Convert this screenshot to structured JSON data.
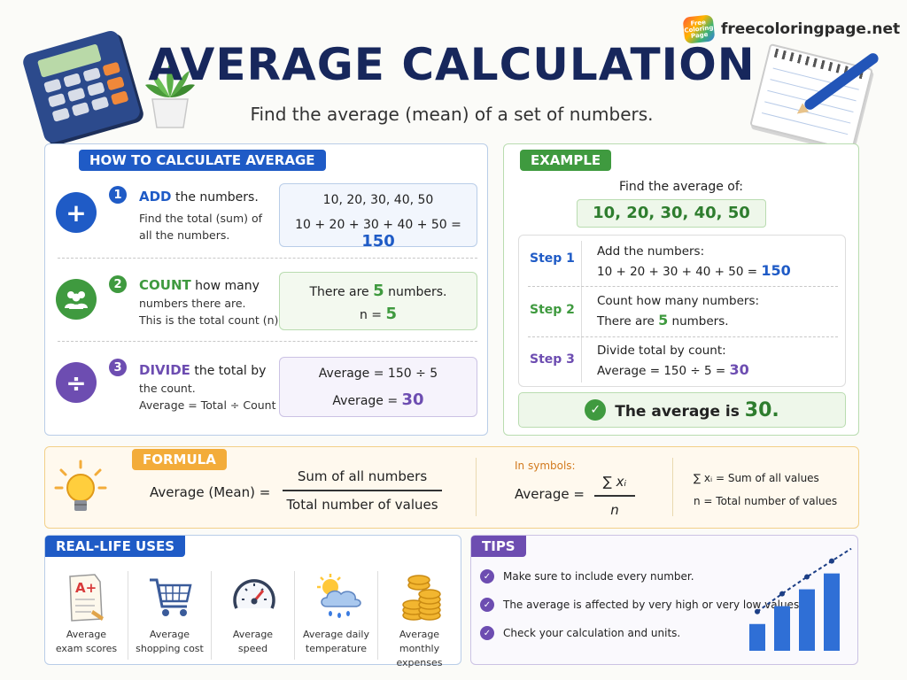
{
  "brand": {
    "logo_text": "Free Coloring Page",
    "site": "freecoloringpage.net"
  },
  "header": {
    "title": "AVERAGE CALCULATION",
    "subtitle": "Find the average (mean) of a set of numbers."
  },
  "how_to": {
    "tag": "HOW TO CALCULATE AVERAGE",
    "steps": [
      {
        "number": "1",
        "symbol": "+",
        "keyword": "ADD",
        "rest": " the numbers.",
        "desc_1": "Find the total (sum) of",
        "desc_2": "all the numbers.",
        "box_line_1": "10, 20, 30, 40, 50",
        "box_line_2_prefix": "10 + 20 + 30 + 40 + 50  =  ",
        "box_line_2_value": "150"
      },
      {
        "number": "2",
        "keyword": "COUNT",
        "rest": " how many",
        "desc_1": "numbers there are.",
        "desc_2": "This is the total count (n).",
        "box_line_1_prefix": "There are ",
        "box_line_1_value": "5",
        "box_line_1_suffix": " numbers.",
        "box_line_2_prefix": "n  =  ",
        "box_line_2_value": "5"
      },
      {
        "number": "3",
        "symbol": "÷",
        "keyword": "DIVIDE",
        "rest": " the total by",
        "desc_1": "the count.",
        "desc_2": "Average = Total ÷ Count",
        "box_line_1": "Average  =  150  ÷  5",
        "box_line_2_prefix": "Average  =  ",
        "box_line_2_value": "30"
      }
    ]
  },
  "example": {
    "tag": "EXAMPLE",
    "intro": "Find the average of:",
    "numbers": "10, 20, 30, 40, 50",
    "steps": [
      {
        "label": "Step 1",
        "line_1": "Add the numbers:",
        "line_2_prefix": "10 + 20 + 30 + 40 + 50 = ",
        "line_2_value": "150"
      },
      {
        "label": "Step 2",
        "line_1": "Count how many numbers:",
        "line_2_prefix": "There are ",
        "line_2_value": "5",
        "line_2_suffix": " numbers."
      },
      {
        "label": "Step 3",
        "line_1": "Divide total by count:",
        "line_2_prefix": "Average  =  150 ÷ 5  =  ",
        "line_2_value": "30"
      }
    ],
    "result_prefix": "The average is ",
    "result_value": "30."
  },
  "formula": {
    "tag": "FORMULA",
    "lhs": "Average (Mean)  =",
    "numerator": "Sum of all numbers",
    "denominator": "Total number of values",
    "symbols_label": "In symbols:",
    "symbol_lhs": "Average  =",
    "symbol_num": "∑ xᵢ",
    "symbol_den": "n",
    "legend_1": "∑ xᵢ = Sum of all values",
    "legend_2": "n = Total number of values"
  },
  "uses": {
    "tag": "REAL-LIFE USES",
    "items": [
      {
        "icon": "exam-paper-icon",
        "line_1": "Average",
        "line_2": "exam scores",
        "grade": "A+"
      },
      {
        "icon": "shopping-cart-icon",
        "line_1": "Average",
        "line_2": "shopping cost"
      },
      {
        "icon": "speedometer-icon",
        "line_1": "Average",
        "line_2": "speed"
      },
      {
        "icon": "weather-icon",
        "line_1": "Average daily",
        "line_2": "temperature"
      },
      {
        "icon": "coins-icon",
        "line_1": "Average monthly",
        "line_2": "expenses"
      }
    ]
  },
  "tips": {
    "tag": "TIPS",
    "items": [
      "Make sure to include every number.",
      "The average is affected by very high or very low values.",
      "Check your calculation and units."
    ],
    "bar_levels": [
      0.27,
      0.45,
      0.62,
      0.78
    ]
  },
  "colors": {
    "blue": "#1f5bc6",
    "green": "#3f9a3f",
    "purple": "#6d4db1",
    "orange": "#f3ac3a",
    "navy": "#17275c"
  }
}
